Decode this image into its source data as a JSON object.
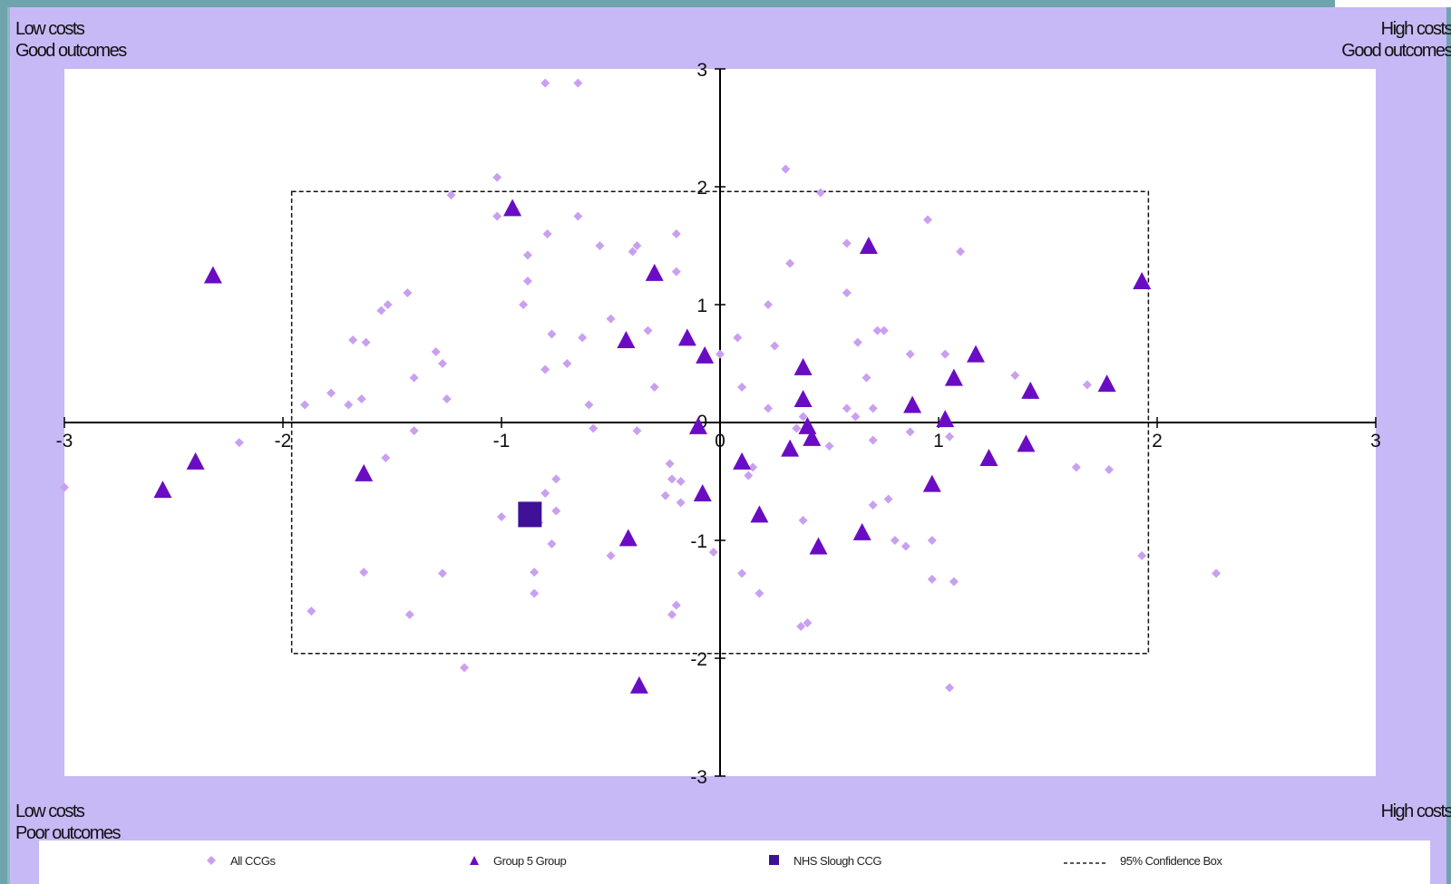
{
  "corners": {
    "top_left": [
      "Low costs",
      "Good outcomes"
    ],
    "top_right": [
      "High costs",
      "Good outcomes"
    ],
    "bottom_left": [
      "Low costs",
      "Poor outcomes"
    ],
    "bottom_right": [
      "High costs"
    ]
  },
  "legend": {
    "all": "All CCGs",
    "group": "Group 5 Group",
    "highlight": "NHS Slough CCG",
    "box": "95% Confidence Box"
  },
  "colors": {
    "background": "#c7b9f5",
    "all_ccgs": "#c9a0f0",
    "group": "#6a0cc4",
    "highlight": "#3e1196"
  },
  "chart_data": {
    "type": "scatter",
    "xlim": [
      -3,
      3
    ],
    "ylim": [
      -3,
      3
    ],
    "x_ticks": [
      -3,
      -2,
      -1,
      0,
      1,
      2,
      3
    ],
    "y_ticks": [
      -3,
      -2,
      -1,
      0,
      1,
      2,
      3
    ],
    "confidence_box": {
      "x": [
        -1.96,
        1.96
      ],
      "y": [
        -1.96,
        1.96
      ]
    },
    "series": [
      {
        "name": "All CCGs",
        "marker": "diamond",
        "points": [
          [
            -0.8,
            2.88
          ],
          [
            -0.65,
            2.88
          ],
          [
            -1.02,
            2.08
          ],
          [
            -1.23,
            1.93
          ],
          [
            -1.02,
            1.75
          ],
          [
            -0.88,
            1.42
          ],
          [
            -0.79,
            1.6
          ],
          [
            -0.65,
            1.75
          ],
          [
            -0.55,
            1.5
          ],
          [
            -0.38,
            1.5
          ],
          [
            -0.4,
            1.45
          ],
          [
            -0.88,
            1.2
          ],
          [
            -0.9,
            1.0
          ],
          [
            -1.43,
            1.1
          ],
          [
            -1.52,
            1.0
          ],
          [
            -1.55,
            0.95
          ],
          [
            -0.2,
            1.6
          ],
          [
            -0.2,
            1.28
          ],
          [
            0.3,
            2.15
          ],
          [
            0.46,
            1.95
          ],
          [
            0.95,
            1.72
          ],
          [
            1.1,
            1.45
          ],
          [
            0.58,
            1.52
          ],
          [
            0.58,
            1.1
          ],
          [
            0.32,
            1.35
          ],
          [
            0.22,
            1.0
          ],
          [
            -0.5,
            0.88
          ],
          [
            -0.33,
            0.78
          ],
          [
            -0.77,
            0.75
          ],
          [
            -0.63,
            0.72
          ],
          [
            -1.68,
            0.7
          ],
          [
            -1.62,
            0.68
          ],
          [
            -1.3,
            0.6
          ],
          [
            -1.27,
            0.5
          ],
          [
            -0.8,
            0.45
          ],
          [
            -0.7,
            0.5
          ],
          [
            -1.4,
            0.38
          ],
          [
            -0.3,
            0.3
          ],
          [
            0.0,
            0.58
          ],
          [
            0.08,
            0.72
          ],
          [
            0.25,
            0.65
          ],
          [
            0.63,
            0.68
          ],
          [
            0.72,
            0.78
          ],
          [
            0.75,
            0.78
          ],
          [
            0.87,
            0.58
          ],
          [
            1.03,
            0.58
          ],
          [
            1.35,
            0.4
          ],
          [
            0.67,
            0.38
          ],
          [
            0.1,
            0.3
          ],
          [
            -1.25,
            0.2
          ],
          [
            -1.64,
            0.2
          ],
          [
            -1.7,
            0.15
          ],
          [
            -1.78,
            0.25
          ],
          [
            -1.9,
            0.15
          ],
          [
            -0.6,
            0.15
          ],
          [
            0.22,
            0.12
          ],
          [
            0.58,
            0.12
          ],
          [
            0.62,
            0.05
          ],
          [
            0.7,
            0.12
          ],
          [
            0.38,
            0.05
          ],
          [
            1.68,
            0.32
          ],
          [
            -2.2,
            -0.17
          ],
          [
            -1.4,
            -0.07
          ],
          [
            -0.58,
            -0.05
          ],
          [
            -0.38,
            -0.07
          ],
          [
            0.35,
            -0.05
          ],
          [
            0.5,
            -0.2
          ],
          [
            0.7,
            -0.15
          ],
          [
            0.87,
            -0.08
          ],
          [
            1.05,
            -0.12
          ],
          [
            -1.53,
            -0.3
          ],
          [
            -3.0,
            -0.55
          ],
          [
            -0.75,
            -0.48
          ],
          [
            -0.8,
            -0.6
          ],
          [
            -0.75,
            -0.75
          ],
          [
            -0.83,
            -0.85
          ],
          [
            -1.0,
            -0.8
          ],
          [
            -0.23,
            -0.35
          ],
          [
            -0.22,
            -0.48
          ],
          [
            -0.18,
            -0.5
          ],
          [
            -0.25,
            -0.62
          ],
          [
            -0.18,
            -0.68
          ],
          [
            0.15,
            -0.38
          ],
          [
            0.13,
            -0.45
          ],
          [
            0.7,
            -0.7
          ],
          [
            0.77,
            -0.65
          ],
          [
            0.8,
            -1.0
          ],
          [
            0.85,
            -1.05
          ],
          [
            0.97,
            -1.0
          ],
          [
            0.38,
            -0.83
          ],
          [
            -0.77,
            -1.03
          ],
          [
            -0.5,
            -1.13
          ],
          [
            -0.03,
            -1.1
          ],
          [
            0.1,
            -1.28
          ],
          [
            0.18,
            -1.45
          ],
          [
            -0.85,
            -1.27
          ],
          [
            -0.85,
            -1.45
          ],
          [
            -1.63,
            -1.27
          ],
          [
            -1.27,
            -1.28
          ],
          [
            -1.87,
            -1.6
          ],
          [
            -1.42,
            -1.63
          ],
          [
            -0.2,
            -1.55
          ],
          [
            -0.22,
            -1.63
          ],
          [
            -1.17,
            -2.08
          ],
          [
            0.4,
            -1.7
          ],
          [
            0.37,
            -1.73
          ],
          [
            0.97,
            -1.33
          ],
          [
            1.07,
            -1.35
          ],
          [
            1.63,
            -0.38
          ],
          [
            1.78,
            -0.4
          ],
          [
            1.93,
            -1.13
          ],
          [
            2.27,
            -1.28
          ],
          [
            1.05,
            -2.25
          ]
        ]
      },
      {
        "name": "Group 5 Group",
        "marker": "triangle",
        "points": [
          [
            -0.95,
            1.82
          ],
          [
            -2.32,
            1.25
          ],
          [
            -0.3,
            1.27
          ],
          [
            0.68,
            1.5
          ],
          [
            1.93,
            1.2
          ],
          [
            -0.43,
            0.7
          ],
          [
            -0.15,
            0.72
          ],
          [
            -0.07,
            0.57
          ],
          [
            0.38,
            0.47
          ],
          [
            1.17,
            0.58
          ],
          [
            1.07,
            0.38
          ],
          [
            1.42,
            0.27
          ],
          [
            1.77,
            0.33
          ],
          [
            0.38,
            0.2
          ],
          [
            0.88,
            0.15
          ],
          [
            1.03,
            0.03
          ],
          [
            -0.1,
            -0.03
          ],
          [
            0.4,
            -0.03
          ],
          [
            0.42,
            -0.13
          ],
          [
            0.32,
            -0.22
          ],
          [
            1.4,
            -0.18
          ],
          [
            1.23,
            -0.3
          ],
          [
            -1.63,
            -0.43
          ],
          [
            -2.4,
            -0.33
          ],
          [
            -2.55,
            -0.57
          ],
          [
            0.1,
            -0.33
          ],
          [
            0.97,
            -0.52
          ],
          [
            -0.08,
            -0.6
          ],
          [
            0.18,
            -0.78
          ],
          [
            0.65,
            -0.93
          ],
          [
            0.45,
            -1.05
          ],
          [
            -0.42,
            -0.98
          ],
          [
            -0.37,
            -2.23
          ]
        ]
      },
      {
        "name": "NHS Slough CCG",
        "marker": "square",
        "points": [
          [
            -0.87,
            -0.78
          ]
        ]
      }
    ]
  }
}
